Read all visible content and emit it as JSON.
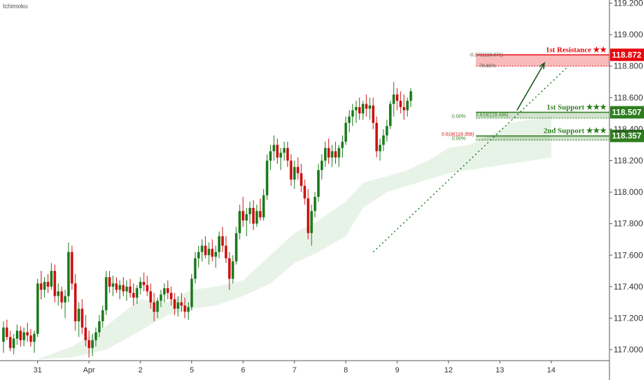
{
  "indicator_label": "Ichimoku",
  "colors": {
    "up": "#1b7a1b",
    "down": "#cc1111",
    "resistance": "#e8080e",
    "support": "#2e7d1e",
    "cloud": "#e8f3e8",
    "axis_text": "#333333"
  },
  "chart_data": {
    "type": "candlestick",
    "y_axis": {
      "ylim": [
        116.93,
        119.22
      ],
      "ticks": [
        "117.000",
        "117.200",
        "117.400",
        "117.600",
        "117.800",
        "118.000",
        "118.200",
        "118.400",
        "118.600",
        "118.800",
        "119.000",
        "119.200"
      ]
    },
    "x_axis": {
      "ticks": [
        "31",
        "Apr",
        "2",
        "5",
        "6",
        "7",
        "8",
        "9",
        "12",
        "13",
        "14"
      ],
      "tick_positions_index": [
        10,
        25,
        40,
        55,
        70,
        85,
        100,
        115,
        130,
        145,
        160
      ],
      "xlim": [
        0,
        176
      ]
    },
    "candles": [
      [
        117.05,
        117.18,
        116.98,
        117.14
      ],
      [
        117.14,
        117.19,
        117.06,
        117.08
      ],
      [
        117.08,
        117.12,
        116.99,
        117.01
      ],
      [
        117.01,
        117.1,
        116.97,
        117.07
      ],
      [
        117.07,
        117.16,
        117.03,
        117.12
      ],
      [
        117.12,
        117.15,
        117.02,
        117.06
      ],
      [
        117.06,
        117.14,
        117.02,
        117.11
      ],
      [
        117.11,
        117.17,
        117.05,
        117.09
      ],
      [
        117.09,
        117.13,
        117.02,
        117.05
      ],
      [
        117.05,
        117.12,
        116.98,
        117.1
      ],
      [
        117.1,
        117.45,
        117.08,
        117.42
      ],
      [
        117.42,
        117.5,
        117.32,
        117.38
      ],
      [
        117.38,
        117.46,
        117.33,
        117.43
      ],
      [
        117.43,
        117.48,
        117.36,
        117.4
      ],
      [
        117.4,
        117.55,
        117.38,
        117.5
      ],
      [
        117.5,
        117.54,
        117.3,
        117.34
      ],
      [
        117.34,
        117.42,
        117.28,
        117.37
      ],
      [
        117.37,
        117.4,
        117.26,
        117.3
      ],
      [
        117.3,
        117.38,
        117.2,
        117.34
      ],
      [
        117.34,
        117.68,
        117.3,
        117.62
      ],
      [
        117.62,
        117.66,
        117.38,
        117.42
      ],
      [
        117.42,
        117.48,
        117.12,
        117.18
      ],
      [
        117.18,
        117.3,
        117.08,
        117.26
      ],
      [
        117.26,
        117.32,
        117.1,
        117.14
      ],
      [
        117.14,
        117.22,
        117.02,
        117.06
      ],
      [
        117.06,
        117.12,
        116.95,
        117.01
      ],
      [
        117.01,
        117.1,
        116.96,
        117.06
      ],
      [
        117.06,
        117.14,
        117.02,
        117.11
      ],
      [
        117.11,
        117.22,
        117.08,
        117.18
      ],
      [
        117.18,
        117.28,
        117.14,
        117.25
      ],
      [
        117.25,
        117.5,
        117.22,
        117.46
      ],
      [
        117.46,
        117.5,
        117.36,
        117.4
      ],
      [
        117.4,
        117.47,
        117.34,
        117.42
      ],
      [
        117.42,
        117.46,
        117.36,
        117.38
      ],
      [
        117.38,
        117.44,
        117.32,
        117.41
      ],
      [
        117.41,
        117.46,
        117.34,
        117.37
      ],
      [
        117.37,
        117.44,
        117.31,
        117.4
      ],
      [
        117.4,
        117.45,
        117.33,
        117.36
      ],
      [
        117.36,
        117.42,
        117.28,
        117.33
      ],
      [
        117.33,
        117.41,
        117.29,
        117.39
      ],
      [
        117.39,
        117.46,
        117.35,
        117.43
      ],
      [
        117.43,
        117.49,
        117.37,
        117.41
      ],
      [
        117.41,
        117.47,
        117.34,
        117.37
      ],
      [
        117.37,
        117.42,
        117.26,
        117.3
      ],
      [
        117.3,
        117.36,
        117.18,
        117.24
      ],
      [
        117.24,
        117.33,
        117.2,
        117.31
      ],
      [
        117.31,
        117.38,
        117.27,
        117.35
      ],
      [
        117.35,
        117.42,
        117.3,
        117.39
      ],
      [
        117.39,
        117.44,
        117.32,
        117.36
      ],
      [
        117.36,
        117.4,
        117.28,
        117.32
      ],
      [
        117.32,
        117.36,
        117.22,
        117.26
      ],
      [
        117.26,
        117.34,
        117.21,
        117.3
      ],
      [
        117.3,
        117.36,
        117.24,
        117.28
      ],
      [
        117.28,
        117.33,
        117.2,
        117.24
      ],
      [
        117.24,
        117.3,
        117.19,
        117.27
      ],
      [
        117.27,
        117.48,
        117.25,
        117.45
      ],
      [
        117.45,
        117.62,
        117.42,
        117.58
      ],
      [
        117.58,
        117.66,
        117.52,
        117.62
      ],
      [
        117.62,
        117.7,
        117.56,
        117.66
      ],
      [
        117.66,
        117.72,
        117.58,
        117.6
      ],
      [
        117.6,
        117.68,
        117.54,
        117.64
      ],
      [
        117.64,
        117.7,
        117.56,
        117.59
      ],
      [
        117.59,
        117.66,
        117.52,
        117.62
      ],
      [
        117.62,
        117.75,
        117.58,
        117.72
      ],
      [
        117.72,
        117.78,
        117.62,
        117.66
      ],
      [
        117.66,
        117.72,
        117.55,
        117.58
      ],
      [
        117.58,
        117.62,
        117.38,
        117.45
      ],
      [
        117.45,
        117.6,
        117.42,
        117.56
      ],
      [
        117.56,
        117.78,
        117.54,
        117.74
      ],
      [
        117.74,
        117.92,
        117.7,
        117.88
      ],
      [
        117.88,
        117.97,
        117.78,
        117.82
      ],
      [
        117.82,
        117.9,
        117.72,
        117.86
      ],
      [
        117.86,
        117.94,
        117.8,
        117.9
      ],
      [
        117.9,
        117.95,
        117.76,
        117.8
      ],
      [
        117.8,
        117.92,
        117.78,
        117.88
      ],
      [
        117.88,
        117.96,
        117.82,
        117.84
      ],
      [
        117.84,
        118.02,
        117.82,
        117.98
      ],
      [
        117.98,
        118.24,
        117.95,
        118.2
      ],
      [
        118.2,
        118.3,
        118.14,
        118.26
      ],
      [
        118.26,
        118.36,
        118.2,
        118.3
      ],
      [
        118.3,
        118.34,
        118.18,
        118.22
      ],
      [
        118.22,
        118.28,
        118.14,
        118.25
      ],
      [
        118.25,
        118.32,
        118.2,
        118.28
      ],
      [
        118.28,
        118.32,
        118.16,
        118.2
      ],
      [
        118.2,
        118.24,
        118.04,
        118.08
      ],
      [
        118.08,
        118.2,
        118.02,
        118.16
      ],
      [
        118.16,
        118.22,
        118.08,
        118.12
      ],
      [
        118.12,
        118.18,
        118.0,
        118.04
      ],
      [
        118.04,
        118.08,
        117.92,
        117.96
      ],
      [
        117.96,
        118.02,
        117.7,
        117.74
      ],
      [
        117.74,
        117.92,
        117.66,
        117.88
      ],
      [
        117.88,
        118.0,
        117.84,
        117.97
      ],
      [
        117.97,
        118.18,
        117.94,
        118.14
      ],
      [
        118.14,
        118.24,
        118.08,
        118.2
      ],
      [
        118.2,
        118.32,
        118.16,
        118.28
      ],
      [
        118.28,
        118.34,
        118.18,
        118.22
      ],
      [
        118.22,
        118.3,
        118.16,
        118.26
      ],
      [
        118.26,
        118.32,
        118.18,
        118.22
      ],
      [
        118.22,
        118.3,
        118.16,
        118.28
      ],
      [
        118.28,
        118.36,
        118.22,
        118.32
      ],
      [
        118.32,
        118.48,
        118.3,
        118.44
      ],
      [
        118.44,
        118.52,
        118.38,
        118.48
      ],
      [
        118.48,
        118.56,
        118.42,
        118.52
      ],
      [
        118.52,
        118.58,
        118.44,
        118.54
      ],
      [
        118.54,
        118.6,
        118.46,
        118.5
      ],
      [
        118.5,
        118.58,
        118.46,
        118.56
      ],
      [
        118.56,
        118.62,
        118.48,
        118.53
      ],
      [
        118.53,
        118.6,
        118.46,
        118.55
      ],
      [
        118.55,
        118.6,
        118.4,
        118.44
      ],
      [
        118.44,
        118.48,
        118.22,
        118.26
      ],
      [
        118.26,
        118.34,
        118.2,
        118.3
      ],
      [
        118.3,
        118.4,
        118.26,
        118.36
      ],
      [
        118.36,
        118.46,
        118.32,
        118.42
      ],
      [
        118.42,
        118.58,
        118.4,
        118.56
      ],
      [
        118.56,
        118.7,
        118.48,
        118.62
      ],
      [
        118.62,
        118.66,
        118.52,
        118.58
      ],
      [
        118.58,
        118.64,
        118.5,
        118.54
      ],
      [
        118.54,
        118.62,
        118.46,
        118.52
      ],
      [
        118.52,
        118.6,
        118.48,
        118.58
      ],
      [
        118.58,
        118.66,
        118.54,
        118.64
      ]
    ],
    "candle_x_start": 0,
    "candle_x_step": 1,
    "ichimoku_cloud": [
      [
        10,
        116.94,
        116.94
      ],
      [
        20,
        116.95,
        117.02
      ],
      [
        30,
        117.0,
        117.15
      ],
      [
        40,
        117.12,
        117.32
      ],
      [
        48,
        117.22,
        117.3
      ],
      [
        55,
        117.26,
        117.38
      ],
      [
        62,
        117.28,
        117.4
      ],
      [
        70,
        117.34,
        117.44
      ],
      [
        78,
        117.42,
        117.6
      ],
      [
        85,
        117.55,
        117.74
      ],
      [
        92,
        117.62,
        117.82
      ],
      [
        100,
        117.72,
        117.94
      ],
      [
        105,
        117.9,
        118.06
      ],
      [
        112,
        118.0,
        118.1
      ],
      [
        118,
        118.04,
        118.14
      ],
      [
        124,
        118.08,
        118.2
      ],
      [
        130,
        118.12,
        118.28
      ],
      [
        136,
        118.14,
        118.3
      ],
      [
        142,
        118.16,
        118.36
      ],
      [
        148,
        118.18,
        118.44
      ],
      [
        154,
        118.2,
        118.46
      ],
      [
        160,
        118.22,
        118.48
      ]
    ],
    "trendline": {
      "x1": 108,
      "y1": 117.62,
      "x2": 165,
      "y2": 118.8
    },
    "arrow": {
      "x1": 150,
      "y1": 118.52,
      "x2": 158,
      "y2": 118.82
    },
    "levels": [
      {
        "name": "1st Resistance ★★",
        "value": "118.872",
        "low": 118.8,
        "high": 118.872,
        "kind": "resistance"
      },
      {
        "name": "1st Support ★★★",
        "value": "118.507",
        "low": 118.47,
        "high": 118.507,
        "kind": "support"
      },
      {
        "name": "2nd Support ★★★",
        "value": "118.357",
        "low": 118.33,
        "high": 118.357,
        "kind": "support"
      }
    ],
    "fib_labels": [
      {
        "text": "-0.272(118.871)",
        "x": 136,
        "y": 118.872,
        "color": "#555555"
      },
      {
        "text": "78.60%",
        "x": 139,
        "y": 118.8,
        "color": "#555555"
      },
      {
        "text": "0.618(118.486)",
        "x": 138,
        "y": 118.49,
        "color": "#2e7d1e"
      },
      {
        "text": "0.00%",
        "x": 131,
        "y": 118.48,
        "color": "#2e7d1e"
      },
      {
        "text": "0.618(118.356)",
        "x": 128,
        "y": 118.366,
        "color": "#cc1111"
      },
      {
        "text": "0.00%",
        "x": 131,
        "y": 118.34,
        "color": "#2e7d1e"
      }
    ]
  }
}
